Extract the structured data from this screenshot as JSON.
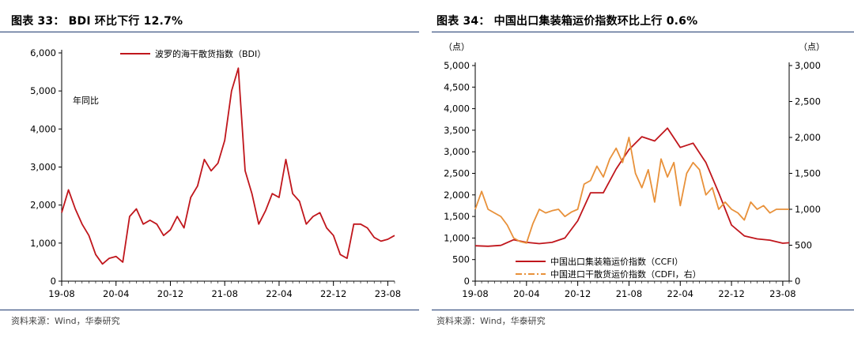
{
  "left": {
    "title": "图表 33：  BDI 环比下行 12.7%",
    "source": "资料来源：Wind，华泰研究"
  },
  "right": {
    "title": "图表 34：  中国出口集装箱运价指数环比上行 0.6%",
    "source": "资料来源：Wind，华泰研究"
  },
  "colors": {
    "primary": "#c0161c",
    "secondary": "#e8913a",
    "axis": "#000000",
    "rule": "#1f3a70"
  },
  "chart_data": [
    {
      "type": "line",
      "title": "",
      "annotation": "年同比",
      "x_ticks": [
        "19-08",
        "20-04",
        "20-12",
        "21-08",
        "22-04",
        "22-12",
        "23-08"
      ],
      "y_ticks": [
        "0",
        "1,000",
        "2,000",
        "3,000",
        "4,000",
        "5,000",
        "6,000"
      ],
      "ylim": [
        0,
        6000
      ],
      "xlim": [
        "2019-08",
        "2023-09"
      ],
      "legend_position": "top-center",
      "series": [
        {
          "name": "波罗的海干散货指数（BDI）",
          "color": "#c0161c",
          "x": [
            "2019-08",
            "2019-09",
            "2019-10",
            "2019-11",
            "2019-12",
            "2020-01",
            "2020-02",
            "2020-03",
            "2020-04",
            "2020-05",
            "2020-06",
            "2020-07",
            "2020-08",
            "2020-09",
            "2020-10",
            "2020-11",
            "2020-12",
            "2021-01",
            "2021-02",
            "2021-03",
            "2021-04",
            "2021-05",
            "2021-06",
            "2021-07",
            "2021-08",
            "2021-09",
            "2021-10",
            "2021-11",
            "2021-12",
            "2022-01",
            "2022-02",
            "2022-03",
            "2022-04",
            "2022-05",
            "2022-06",
            "2022-07",
            "2022-08",
            "2022-09",
            "2022-10",
            "2022-11",
            "2022-12",
            "2023-01",
            "2023-02",
            "2023-03",
            "2023-04",
            "2023-05",
            "2023-06",
            "2023-07",
            "2023-08",
            "2023-09"
          ],
          "y": [
            1800,
            2400,
            1900,
            1500,
            1200,
            700,
            450,
            600,
            650,
            500,
            1700,
            1900,
            1500,
            1600,
            1500,
            1200,
            1350,
            1700,
            1400,
            2200,
            2500,
            3200,
            2900,
            3100,
            3700,
            5000,
            5600,
            2900,
            2300,
            1500,
            1850,
            2300,
            2200,
            3200,
            2300,
            2100,
            1500,
            1700,
            1800,
            1400,
            1200,
            700,
            600,
            1500,
            1500,
            1400,
            1150,
            1050,
            1100,
            1200
          ]
        }
      ]
    },
    {
      "type": "line",
      "title": "",
      "unit_left": "（点）",
      "unit_right": "（点）",
      "x_ticks": [
        "19-08",
        "20-04",
        "20-12",
        "21-08",
        "22-04",
        "22-12",
        "23-08"
      ],
      "y_left_ticks": [
        "0",
        "500",
        "1,000",
        "1,500",
        "2,000",
        "2,500",
        "3,000",
        "3,500",
        "4,000",
        "4,500",
        "5,000"
      ],
      "y_right_ticks": [
        "0",
        "500",
        "1,000",
        "1,500",
        "2,000",
        "2,500",
        "3,000"
      ],
      "ylim_left": [
        0,
        5000
      ],
      "ylim_right": [
        0,
        3000
      ],
      "xlim": [
        "2019-08",
        "2023-09"
      ],
      "legend_position": "bottom-center",
      "series": [
        {
          "name": "中国出口集装箱运价指数（CCFI）",
          "axis": "left",
          "color": "#c0161c",
          "x": [
            "2019-08",
            "2019-10",
            "2019-12",
            "2020-02",
            "2020-04",
            "2020-06",
            "2020-08",
            "2020-10",
            "2020-12",
            "2021-02",
            "2021-04",
            "2021-06",
            "2021-08",
            "2021-10",
            "2021-12",
            "2022-02",
            "2022-04",
            "2022-06",
            "2022-08",
            "2022-10",
            "2022-12",
            "2023-02",
            "2023-04",
            "2023-06",
            "2023-08",
            "2023-09"
          ],
          "y": [
            820,
            810,
            830,
            960,
            900,
            870,
            900,
            1000,
            1400,
            2050,
            2050,
            2600,
            3050,
            3350,
            3250,
            3550,
            3100,
            3200,
            2750,
            2050,
            1300,
            1050,
            980,
            950,
            880,
            890
          ]
        },
        {
          "name": "中国进口干散货运价指数（CDFI，右）",
          "axis": "right",
          "color": "#e8913a",
          "dashed": true,
          "x": [
            "2019-08",
            "2019-09",
            "2019-10",
            "2019-11",
            "2019-12",
            "2020-01",
            "2020-02",
            "2020-03",
            "2020-04",
            "2020-05",
            "2020-06",
            "2020-07",
            "2020-08",
            "2020-09",
            "2020-10",
            "2020-11",
            "2020-12",
            "2021-01",
            "2021-02",
            "2021-03",
            "2021-04",
            "2021-05",
            "2021-06",
            "2021-07",
            "2021-08",
            "2021-09",
            "2021-10",
            "2021-11",
            "2021-12",
            "2022-01",
            "2022-02",
            "2022-03",
            "2022-04",
            "2022-05",
            "2022-06",
            "2022-07",
            "2022-08",
            "2022-09",
            "2022-10",
            "2022-11",
            "2022-12",
            "2023-01",
            "2023-02",
            "2023-03",
            "2023-04",
            "2023-05",
            "2023-06",
            "2023-07",
            "2023-08",
            "2023-09"
          ],
          "y": [
            1000,
            1250,
            1000,
            950,
            900,
            780,
            600,
            550,
            530,
            800,
            1000,
            950,
            980,
            1000,
            900,
            960,
            1000,
            1350,
            1400,
            1600,
            1450,
            1700,
            1850,
            1650,
            2000,
            1500,
            1300,
            1550,
            1100,
            1700,
            1450,
            1650,
            1050,
            1500,
            1650,
            1550,
            1200,
            1300,
            1000,
            1100,
            1000,
            950,
            850,
            1100,
            1000,
            1050,
            950,
            1000,
            1000,
            1000
          ]
        }
      ]
    }
  ]
}
